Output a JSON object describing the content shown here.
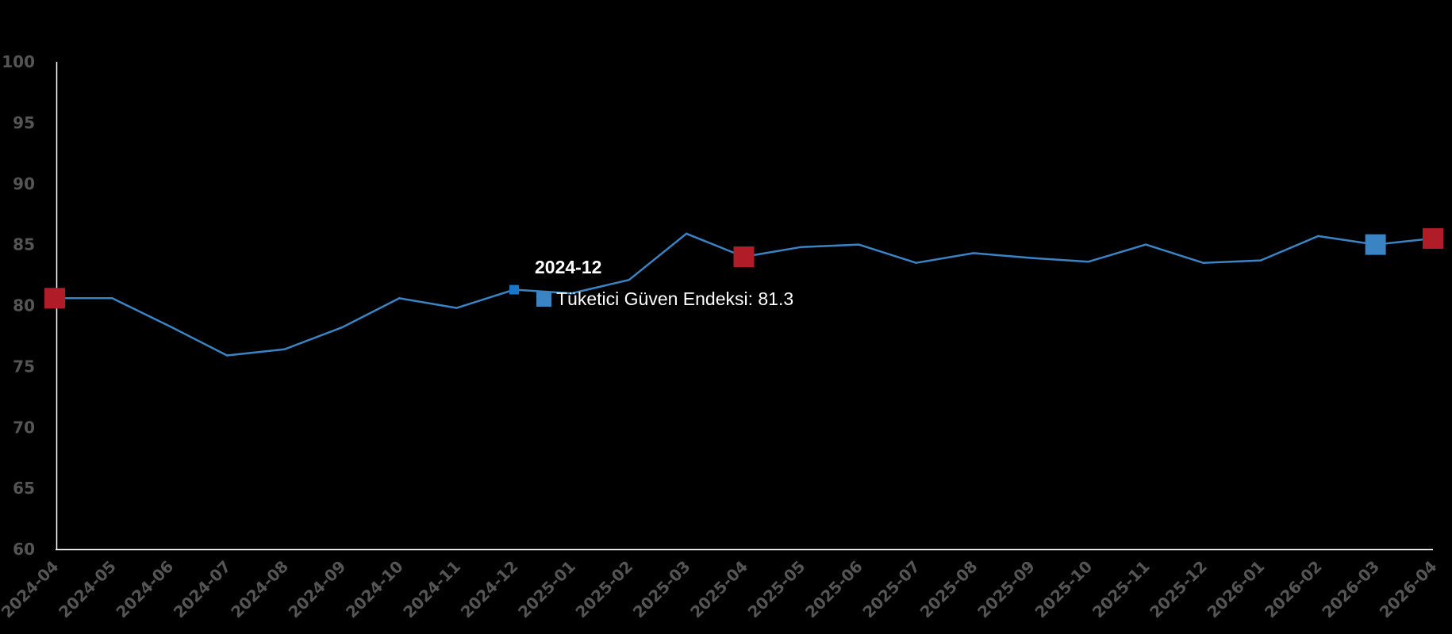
{
  "chart_data": {
    "type": "line",
    "title": "",
    "xlabel": "",
    "ylabel": "",
    "ylim": [
      60,
      100
    ],
    "yticks": [
      60,
      65,
      70,
      75,
      80,
      85,
      90,
      95,
      100
    ],
    "categories": [
      "2024-04",
      "2024-05",
      "2024-06",
      "2024-07",
      "2024-08",
      "2024-09",
      "2024-10",
      "2024-11",
      "2024-12",
      "2025-01",
      "2025-02",
      "2025-03",
      "2025-04",
      "2025-05",
      "2025-06",
      "2025-07",
      "2025-08",
      "2025-09",
      "2025-10",
      "2025-11",
      "2025-12",
      "2026-01",
      "2026-02",
      "2026-03",
      "2026-04"
    ],
    "series": [
      {
        "name": "Tüketici Güven Endeksi",
        "color": "#3a84c4",
        "values": [
          80.6,
          80.6,
          78.3,
          75.9,
          76.4,
          78.2,
          80.6,
          79.8,
          81.3,
          81.0,
          82.1,
          85.9,
          84.0,
          84.8,
          85.0,
          83.5,
          84.3,
          83.9,
          83.6,
          85.0,
          83.5,
          83.7,
          85.7,
          85.0,
          85.5
        ]
      }
    ],
    "markers": [
      {
        "category": "2024-04",
        "value": 80.6,
        "color": "#b01c28",
        "shape": "square"
      },
      {
        "category": "2025-04",
        "value": 84.0,
        "color": "#b01c28",
        "shape": "square"
      },
      {
        "category": "2026-03",
        "value": 85.0,
        "color": "#3a84c4",
        "shape": "square"
      },
      {
        "category": "2026-04",
        "value": 85.5,
        "color": "#b01c28",
        "shape": "square"
      }
    ],
    "highlight": {
      "category": "2024-12",
      "value": 81.3
    },
    "grid": false,
    "legend": "none"
  },
  "tooltip": {
    "title": "2024-12",
    "series_label": "Tüketici Güven Endeksi: 81.3",
    "swatch_color": "#3a84c4"
  }
}
